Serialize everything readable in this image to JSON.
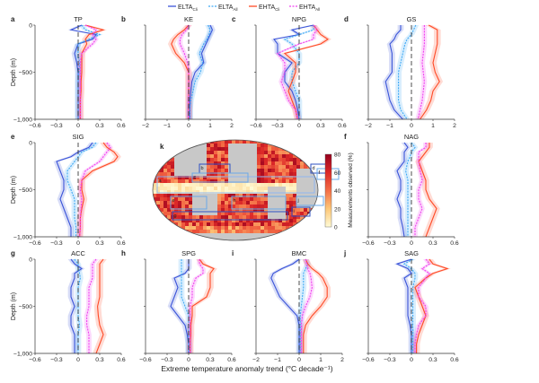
{
  "legend": [
    {
      "base": "ELTA",
      "sub": "Cli",
      "color": "#3b55d9",
      "dash": false
    },
    {
      "base": "ELTA",
      "sub": "All",
      "color": "#3fa9f5",
      "dash": true
    },
    {
      "base": "EHTA",
      "sub": "Cli",
      "color": "#ff4a26",
      "dash": false
    },
    {
      "base": "EHTA",
      "sub": "All",
      "color": "#f040f0",
      "dash": true
    }
  ],
  "xlabel": "Extreme temperature anomaly trend (°C decade⁻¹)",
  "ylabel": "Depth (m)",
  "yticks": [
    "0",
    "−500",
    "−1,000"
  ],
  "map": {
    "letter": "k",
    "colorbar_label": "Measurements observed (%)",
    "colorbar_ticks": [
      "0",
      "20",
      "40",
      "60",
      "80"
    ],
    "colorbar_range": [
      0,
      80
    ],
    "box_labels": [
      "a",
      "b",
      "c",
      "d",
      "e",
      "f",
      "g",
      "h",
      "i",
      "j"
    ]
  },
  "chart_data": [
    {
      "type": "line",
      "letter": "a",
      "title": "TP",
      "xlim": [
        -0.6,
        0.6
      ],
      "xticks": [
        "−0.6",
        "−0.3",
        "0",
        "0.3",
        "0.6"
      ],
      "ylim": [
        -1000,
        0
      ],
      "depth": [
        0,
        50,
        100,
        150,
        200,
        300,
        400,
        500,
        600,
        700,
        800,
        900,
        1000
      ],
      "series": [
        {
          "name": "ELTA Cli",
          "values": [
            0.05,
            -0.1,
            0.25,
            0.2,
            0.0,
            -0.05,
            -0.02,
            0,
            0,
            0,
            0,
            0,
            0
          ]
        },
        {
          "name": "ELTA All",
          "values": [
            0.05,
            0.1,
            0.3,
            0.15,
            0.0,
            0,
            0.02,
            0.01,
            0,
            0,
            0,
            0,
            0
          ]
        },
        {
          "name": "EHTA Cli",
          "values": [
            0.1,
            0.35,
            0.15,
            0.1,
            0.12,
            0.05,
            0.05,
            0.05,
            0.04,
            0.04,
            0.03,
            0.03,
            0.03
          ]
        },
        {
          "name": "EHTA All",
          "values": [
            0.1,
            0.25,
            0.2,
            0.25,
            0.2,
            0.05,
            0.03,
            0.03,
            0.03,
            0.03,
            0.03,
            0.03,
            0.03
          ]
        }
      ]
    },
    {
      "type": "line",
      "letter": "b",
      "title": "KE",
      "xlim": [
        -2,
        2
      ],
      "xticks": [
        "−2",
        "−1",
        "0",
        "1",
        "2"
      ],
      "ylim": [
        -1000,
        0
      ],
      "depth": [
        0,
        50,
        100,
        150,
        200,
        300,
        400,
        500,
        600,
        700,
        800,
        900,
        1000
      ],
      "series": [
        {
          "name": "ELTA Cli",
          "values": [
            1.0,
            1.1,
            1.0,
            0.9,
            0.8,
            0.6,
            0.7,
            0.3,
            0.15,
            0.1,
            0.05,
            0.05,
            0.05
          ]
        },
        {
          "name": "ELTA All",
          "values": [
            0.9,
            1.0,
            0.95,
            0.85,
            0.7,
            0.5,
            0.65,
            0.55,
            0.3,
            0.2,
            0.1,
            0.05,
            0.05
          ]
        },
        {
          "name": "EHTA Cli",
          "values": [
            0,
            -0.2,
            -0.5,
            -0.7,
            -0.8,
            -0.6,
            -0.2,
            0,
            0,
            0,
            0,
            0,
            0
          ]
        },
        {
          "name": "EHTA All",
          "values": [
            0,
            -0.1,
            -0.3,
            -0.4,
            -0.4,
            -0.2,
            -0.05,
            0,
            0,
            0,
            0,
            0,
            0
          ]
        }
      ]
    },
    {
      "type": "line",
      "letter": "c",
      "title": "NPG",
      "xlim": [
        -0.6,
        0.6
      ],
      "xticks": [
        "−0.6",
        "−0.3",
        "0",
        "0.3",
        "0.6"
      ],
      "ylim": [
        -1000,
        0
      ],
      "depth": [
        0,
        50,
        100,
        150,
        200,
        300,
        400,
        500,
        600,
        700,
        800,
        900,
        1000
      ],
      "series": [
        {
          "name": "ELTA Cli",
          "values": [
            0.2,
            -0.1,
            0.0,
            -0.35,
            -0.3,
            -0.3,
            -0.1,
            -0.2,
            -0.2,
            -0.1,
            -0.05,
            -0.02,
            0
          ]
        },
        {
          "name": "ELTA All",
          "values": [
            0.2,
            0.2,
            0.0,
            -0.2,
            -0.1,
            0.0,
            0.0,
            -0.1,
            -0.1,
            -0.05,
            0,
            0,
            0
          ]
        },
        {
          "name": "EHTA Cli",
          "values": [
            0.2,
            0.25,
            0.3,
            0.4,
            0.3,
            -0.2,
            -0.05,
            -0.05,
            -0.1,
            -0.15,
            -0.1,
            -0.05,
            -0.02
          ]
        },
        {
          "name": "EHTA All",
          "values": [
            0.2,
            0.25,
            0.2,
            0.2,
            0.0,
            -0.3,
            -0.2,
            -0.2,
            -0.25,
            -0.2,
            -0.15,
            -0.05,
            -0.02
          ]
        }
      ]
    },
    {
      "type": "line",
      "letter": "d",
      "title": "GS",
      "xlim": [
        -2,
        2
      ],
      "xticks": [
        "−2",
        "−1",
        "0",
        "1",
        "2"
      ],
      "ylim": [
        -1000,
        0
      ],
      "depth": [
        0,
        50,
        100,
        150,
        200,
        300,
        400,
        500,
        600,
        700,
        800,
        900,
        1000
      ],
      "series": [
        {
          "name": "ELTA Cli",
          "values": [
            -0.5,
            -0.5,
            -0.7,
            -0.8,
            -1.0,
            -0.9,
            -0.9,
            -0.9,
            -1.2,
            -1.1,
            -1.0,
            -0.8,
            -0.4
          ]
        },
        {
          "name": "ELTA All",
          "values": [
            0.2,
            0.1,
            0,
            -0.2,
            -0.3,
            -0.4,
            -0.5,
            -0.6,
            -0.6,
            -0.6,
            -0.6,
            -0.5,
            -0.2
          ]
        },
        {
          "name": "EHTA Cli",
          "values": [
            0.8,
            1.2,
            1.2,
            1.2,
            1.2,
            1.1,
            1.0,
            1.1,
            1.3,
            1.0,
            0.9,
            0.7,
            0.4
          ]
        },
        {
          "name": "EHTA All",
          "values": [
            0.6,
            0.6,
            0.6,
            0.6,
            0.6,
            0.55,
            0.5,
            0.55,
            0.6,
            0.55,
            0.5,
            0.4,
            0.3
          ]
        }
      ]
    },
    {
      "type": "line",
      "letter": "e",
      "title": "SIG",
      "xlim": [
        -0.6,
        0.6
      ],
      "xticks": [
        "−0.6",
        "−0.3",
        "0",
        "0.3",
        "0.6"
      ],
      "ylim": [
        -1000,
        0
      ],
      "depth": [
        0,
        50,
        100,
        150,
        200,
        300,
        400,
        500,
        600,
        700,
        800,
        900,
        1000
      ],
      "series": [
        {
          "name": "ELTA Cli",
          "values": [
            0.2,
            0.15,
            0.0,
            -0.1,
            -0.3,
            -0.25,
            -0.2,
            -0.2,
            -0.25,
            -0.2,
            -0.15,
            -0.1,
            -0.1
          ]
        },
        {
          "name": "ELTA All",
          "values": [
            0.25,
            0.2,
            0.05,
            0.0,
            -0.05,
            -0.15,
            -0.15,
            -0.1,
            -0.05,
            -0.05,
            -0.05,
            -0.03,
            -0.03
          ]
        },
        {
          "name": "EHTA Cli",
          "values": [
            0.35,
            0.4,
            0.5,
            0.55,
            0.5,
            0.2,
            0.05,
            0.05,
            0.08,
            0.05,
            0.03,
            0.03,
            0.02
          ]
        },
        {
          "name": "EHTA All",
          "values": [
            0.4,
            0.45,
            0.4,
            0.35,
            0.3,
            0.1,
            0.05,
            0.03,
            0.05,
            0.04,
            0.03,
            0.03,
            0.02
          ]
        }
      ]
    },
    {
      "type": "line",
      "letter": "f",
      "title": "NAG",
      "xlim": [
        -0.6,
        0.6
      ],
      "xticks": [
        "−0.6",
        "−0.3",
        "0",
        "0.3",
        "0.6"
      ],
      "ylim": [
        -1000,
        0
      ],
      "depth": [
        0,
        50,
        100,
        150,
        200,
        300,
        400,
        500,
        600,
        700,
        800,
        900,
        1000
      ],
      "series": [
        {
          "name": "ELTA Cli",
          "values": [
            -0.1,
            -0.05,
            -0.1,
            -0.1,
            -0.1,
            -0.2,
            -0.15,
            -0.15,
            -0.2,
            -0.15,
            -0.15,
            -0.12,
            -0.1
          ]
        },
        {
          "name": "ELTA All",
          "values": [
            0,
            0.05,
            0.0,
            -0.02,
            -0.05,
            -0.08,
            -0.05,
            -0.05,
            -0.05,
            -0.05,
            -0.05,
            -0.05,
            -0.05
          ]
        },
        {
          "name": "EHTA Cli",
          "values": [
            0.25,
            0.25,
            0.2,
            0.15,
            0.1,
            0.15,
            0.2,
            0.2,
            0.25,
            0.35,
            0.3,
            0.25,
            0.2
          ]
        },
        {
          "name": "EHTA All",
          "values": [
            0.2,
            0.2,
            0.1,
            0.1,
            0.1,
            0.12,
            0.15,
            0.1,
            0.1,
            0.15,
            0.1,
            0.05,
            0.05
          ]
        }
      ]
    },
    {
      "type": "line",
      "letter": "g",
      "title": "ACC",
      "xlim": [
        -0.6,
        0.6
      ],
      "xticks": [
        "−0.6",
        "−0.3",
        "0",
        "0.3",
        "0.6"
      ],
      "ylim": [
        -1000,
        0
      ],
      "depth": [
        0,
        50,
        100,
        150,
        200,
        300,
        400,
        500,
        600,
        700,
        800,
        900,
        1000
      ],
      "series": [
        {
          "name": "ELTA Cli",
          "values": [
            -0.1,
            -0.05,
            0.05,
            -0.05,
            -0.05,
            -0.1,
            -0.1,
            -0.05,
            -0.1,
            -0.1,
            -0.05,
            -0.05,
            -0.05
          ]
        },
        {
          "name": "ELTA All",
          "values": [
            -0.05,
            0,
            0,
            0.02,
            0.03,
            0,
            0,
            0,
            0,
            0.02,
            0,
            0,
            0
          ]
        },
        {
          "name": "EHTA Cli",
          "values": [
            0.35,
            0.3,
            0.3,
            0.3,
            0.3,
            0.3,
            0.3,
            0.27,
            0.28,
            0.3,
            0.35,
            0.3,
            0.25
          ]
        },
        {
          "name": "EHTA All",
          "values": [
            0.25,
            0.2,
            0.2,
            0.2,
            0.2,
            0.15,
            0.15,
            0.15,
            0.12,
            0.12,
            0.15,
            0.15,
            0.15
          ]
        }
      ]
    },
    {
      "type": "line",
      "letter": "h",
      "title": "SPG",
      "xlim": [
        -0.6,
        0.6
      ],
      "xticks": [
        "−0.6",
        "−0.3",
        "0",
        "0.3",
        "0.6"
      ],
      "ylim": [
        -1000,
        0
      ],
      "depth": [
        0,
        50,
        100,
        150,
        200,
        300,
        400,
        500,
        600,
        700,
        800,
        900,
        1000
      ],
      "series": [
        {
          "name": "ELTA Cli",
          "values": [
            0,
            0,
            0,
            -0.05,
            -0.2,
            -0.15,
            -0.2,
            -0.25,
            -0.15,
            -0.05,
            -0.02,
            0,
            0
          ]
        },
        {
          "name": "ELTA All",
          "values": [
            -0.1,
            -0.1,
            -0.1,
            -0.1,
            -0.1,
            -0.1,
            -0.1,
            -0.05,
            0,
            0,
            0,
            0,
            0
          ]
        },
        {
          "name": "EHTA Cli",
          "values": [
            0.15,
            0.2,
            0.35,
            0.3,
            0.3,
            0.3,
            0.25,
            0.05,
            0.05,
            0.03,
            0.03,
            0.02,
            0.02
          ]
        },
        {
          "name": "EHTA All",
          "values": [
            0.15,
            0.15,
            0.2,
            0.2,
            0.1,
            0.05,
            0.05,
            0.02,
            0.02,
            0.02,
            0.02,
            0.02,
            0.02
          ]
        }
      ]
    },
    {
      "type": "line",
      "letter": "i",
      "title": "BMC",
      "xlim": [
        -2,
        2
      ],
      "xticks": [
        "−2",
        "−1",
        "0",
        "1",
        "2"
      ],
      "ylim": [
        -1000,
        0
      ],
      "depth": [
        0,
        50,
        100,
        150,
        200,
        300,
        400,
        500,
        600,
        700,
        800,
        900,
        1000
      ],
      "series": [
        {
          "name": "ELTA Cli",
          "values": [
            0,
            -0.3,
            -0.8,
            -1.2,
            -1.3,
            -1.1,
            -0.9,
            -0.5,
            -0.1,
            0,
            0,
            0,
            0
          ]
        },
        {
          "name": "ELTA All",
          "values": [
            0.3,
            0.4,
            0.3,
            0.2,
            0.2,
            0.2,
            0.15,
            0.1,
            0.05,
            0.05,
            0.05,
            0.05,
            0.05
          ]
        },
        {
          "name": "EHTA Cli",
          "values": [
            0.3,
            0.4,
            0.6,
            0.9,
            1.1,
            1.3,
            1.3,
            1.0,
            0.6,
            0.3,
            0.2,
            0.2,
            0.2
          ]
        },
        {
          "name": "EHTA All",
          "values": [
            0.3,
            0.35,
            0.4,
            0.5,
            0.55,
            0.6,
            0.5,
            0.3,
            0.15,
            0.1,
            0.1,
            0.1,
            0.1
          ]
        }
      ]
    },
    {
      "type": "line",
      "letter": "j",
      "title": "SAG",
      "xlim": [
        -0.6,
        0.6
      ],
      "xticks": [
        "−0.6",
        "−0.3",
        "0",
        "0.3",
        "0.6"
      ],
      "ylim": [
        -1000,
        0
      ],
      "depth": [
        0,
        50,
        100,
        150,
        200,
        300,
        400,
        500,
        600,
        700,
        800,
        900,
        1000
      ],
      "series": [
        {
          "name": "ELTA Cli",
          "values": [
            0,
            -0.2,
            -0.05,
            0,
            -0.1,
            -0.05,
            -0.05,
            -0.05,
            -0.05,
            -0.02,
            0,
            0,
            0
          ]
        },
        {
          "name": "ELTA All",
          "values": [
            0.02,
            -0.1,
            0,
            0.05,
            0.05,
            0.02,
            0.02,
            0.02,
            0.02,
            0.02,
            0.02,
            0.02,
            0.02
          ]
        },
        {
          "name": "EHTA Cli",
          "values": [
            0.25,
            0.3,
            0.5,
            0.3,
            0.2,
            0.05,
            0.1,
            0.15,
            0.2,
            0.15,
            0.1,
            0.07,
            0.07
          ]
        },
        {
          "name": "EHTA All",
          "values": [
            0.2,
            0.25,
            0.15,
            0.25,
            0.2,
            0.1,
            0.1,
            0.2,
            0.2,
            0.1,
            0.07,
            0.05,
            0.05
          ]
        }
      ]
    }
  ]
}
